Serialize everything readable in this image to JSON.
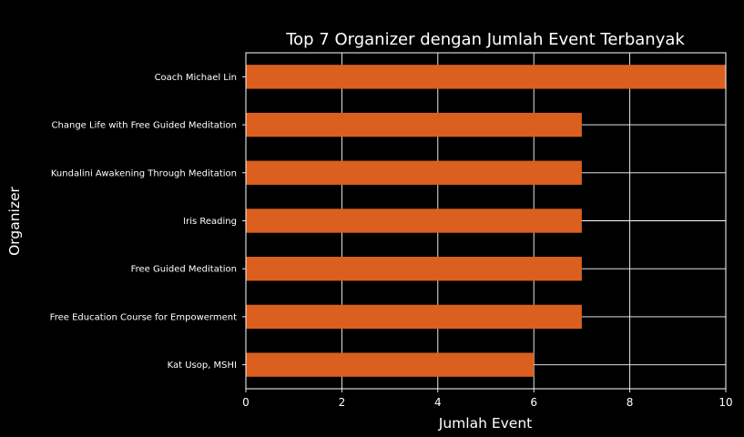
{
  "colors": {
    "background": "#000000",
    "bar": "#db5f1f",
    "text": "#ffffff",
    "grid": "#ffffff"
  },
  "chart_data": {
    "type": "bar",
    "orientation": "horizontal",
    "title": "Top 7 Organizer dengan Jumlah Event Terbanyak",
    "xlabel": "Jumlah Event",
    "ylabel": "Organizer",
    "categories": [
      "Coach Michael Lin",
      "Change Life with Free Guided Meditation",
      "Kundalini Awakening Through Meditation",
      "Iris Reading",
      "Free Guided Meditation",
      "Free Education Course for Empowerment",
      "Kat Usop, MSHI"
    ],
    "values": [
      10,
      7,
      7,
      7,
      7,
      7,
      6
    ],
    "xlim": [
      0,
      10
    ],
    "xticks": [
      "0",
      "2",
      "4",
      "6",
      "8",
      "10"
    ],
    "grid": true,
    "legend": "none"
  }
}
